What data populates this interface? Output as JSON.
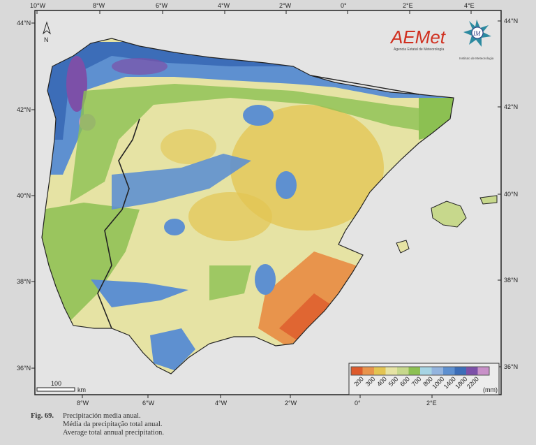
{
  "map": {
    "top_longitudes": [
      "10°W",
      "8°W",
      "6°W",
      "4°W",
      "2°W",
      "0°",
      "2°E",
      "4°E"
    ],
    "bottom_longitudes": [
      "8°W",
      "6°W",
      "4°W",
      "2°W",
      "0°",
      "2°E"
    ],
    "left_latitudes": [
      "44°N",
      "42°N",
      "40°N",
      "38°N",
      "36°N"
    ],
    "right_latitudes": [
      "44°N",
      "42°N",
      "40°N",
      "38°N",
      "36°N"
    ],
    "north_arrow": "N",
    "scale_bar": {
      "value": "100",
      "unit": "km"
    }
  },
  "logos": {
    "aemet": "AEMet",
    "aemet_subtitle": "Agencia Estatal de Meteorología",
    "im": "IM",
    "im_subtitle": "Instituto de Meteorologia"
  },
  "legend": {
    "unit": "(mm)",
    "labels": [
      "200",
      "300",
      "400",
      "500",
      "600",
      "700",
      "800",
      "1000",
      "1400",
      "1800",
      "2200"
    ],
    "colors": [
      "#dd5a2c",
      "#e8944c",
      "#e3c452",
      "#e6e3a4",
      "#c7d88c",
      "#8cc052",
      "#a6d4e4",
      "#93b4de",
      "#5e90d0",
      "#3c6db8",
      "#7c50a8",
      "#c890c8"
    ]
  },
  "caption": {
    "fig": "Fig. 69.",
    "es": "Precipitación media anual.",
    "pt": "Média da precipitação total anual.",
    "en": "Average total annual precipitation."
  }
}
